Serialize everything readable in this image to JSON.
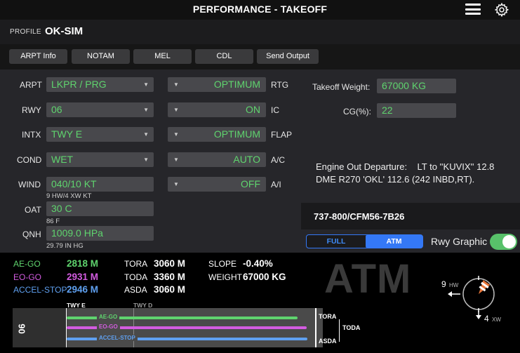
{
  "header": {
    "title": "PERFORMANCE - TAKEOFF"
  },
  "profile": {
    "label": "PROFILE",
    "value": "OK-SIM"
  },
  "toolbar": {
    "buttons": [
      "ARPT Info",
      "NOTAM",
      "MEL",
      "CDL",
      "Send Output"
    ]
  },
  "left_fields": {
    "arpt": {
      "label": "ARPT",
      "value": "LKPR / PRG"
    },
    "rwy": {
      "label": "RWY",
      "value": "06"
    },
    "intx": {
      "label": "INTX",
      "value": "TWY E"
    },
    "cond": {
      "label": "COND",
      "value": "WET"
    },
    "wind": {
      "label": "WIND",
      "value": "040/10 KT",
      "sub": "9 HW/4 XW KT"
    },
    "oat": {
      "label": "OAT",
      "value": "30 C",
      "sub": "86 F"
    },
    "qnh": {
      "label": "QNH",
      "value": "1009.0 HPa",
      "sub": "29.79 IN HG"
    }
  },
  "mid_fields": {
    "rtg": {
      "label": "RTG",
      "value": "OPTIMUM"
    },
    "ic": {
      "label": "IC",
      "value": "ON"
    },
    "flap": {
      "label": "FLAP",
      "value": "OPTIMUM"
    },
    "ac": {
      "label": "A/C",
      "value": "AUTO"
    },
    "ai": {
      "label": "A/I",
      "value": "OFF"
    }
  },
  "right_fields": {
    "tow": {
      "label": "Takeoff Weight:",
      "value": "67000 KG"
    },
    "cg": {
      "label": "CG(%):",
      "value": "22"
    }
  },
  "engine_out": {
    "line1": "Engine Out Departure:    LT to ''KUVIX'' 12.8",
    "line2": "DME R270 'OKL' 112.6 (242 INBD,RT)."
  },
  "aircraft": "737-800/CFM56-7B26",
  "thrust_mode": {
    "options": [
      "FULL",
      "ATM"
    ],
    "selected": "ATM"
  },
  "rwy_graphic": {
    "label": "Rwy Graphic",
    "on": true
  },
  "results": {
    "ae_go": {
      "label": "AE-GO",
      "value": "2818 M",
      "color": "#5fd46e"
    },
    "eo_go": {
      "label": "EO-GO",
      "value": "2931 M",
      "color": "#d35ce0"
    },
    "accel_stop": {
      "label": "ACCEL-STOP",
      "value": "2946 M",
      "color": "#5fa0f0"
    },
    "tora": {
      "label": "TORA",
      "value": "3060 M"
    },
    "toda": {
      "label": "TODA",
      "value": "3360 M"
    },
    "asda": {
      "label": "ASDA",
      "value": "3060 M"
    },
    "slope": {
      "label": "SLOPE",
      "value": "-0.40%"
    },
    "weight": {
      "label": "WEIGHT",
      "value": "67000 KG"
    },
    "mode_watermark": "ATM"
  },
  "wind_indicator": {
    "headwind": "9",
    "hw_label": "HW",
    "crosswind": "4",
    "xw_label": "XW"
  },
  "runway_diagram": {
    "runway": "06",
    "twy_e": "TWY E",
    "twy_d": "TWY D",
    "bar_labels": [
      "AE-GO",
      "EO-GO",
      "ACCEL-STOP"
    ],
    "tora": "TORA",
    "toda": "TODA",
    "asda": "ASDA"
  }
}
